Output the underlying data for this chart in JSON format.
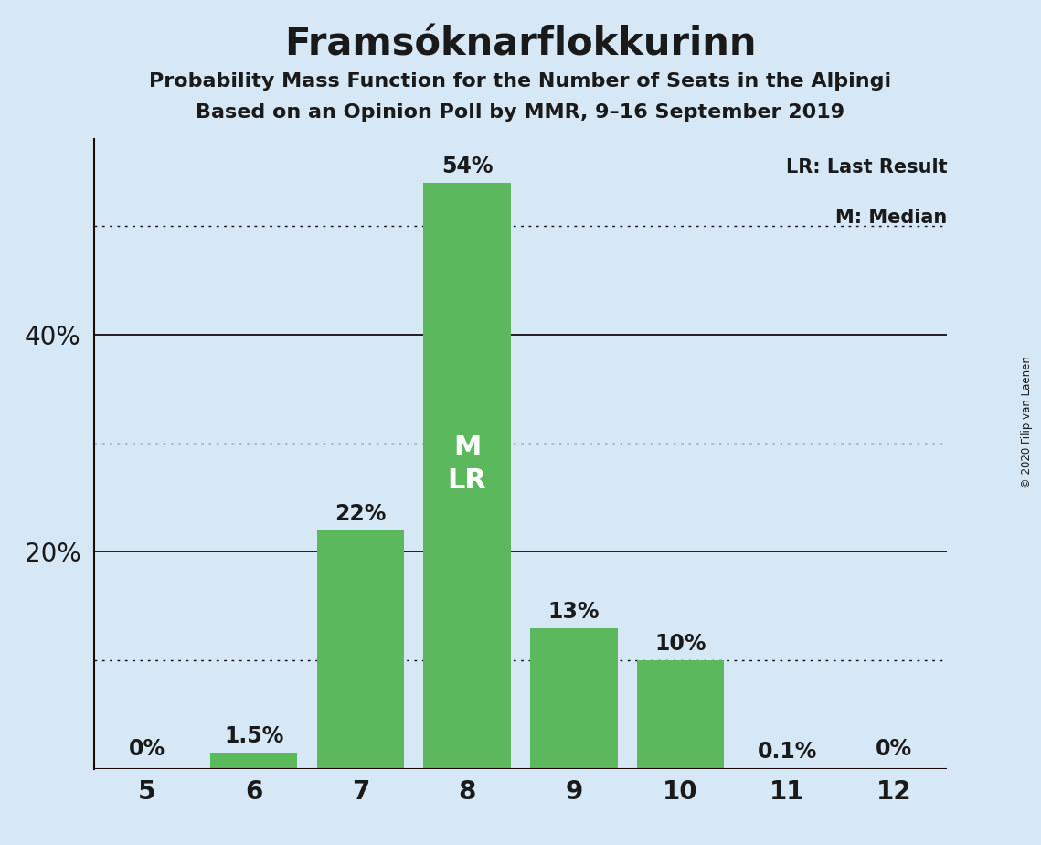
{
  "title": "Framsóknarflokkurinn",
  "subtitle1": "Probability Mass Function for the Number of Seats in the Alþingi",
  "subtitle2": "Based on an Opinion Poll by MMR, 9–16 September 2019",
  "copyright": "© 2020 Filip van Laenen",
  "categories": [
    5,
    6,
    7,
    8,
    9,
    10,
    11,
    12
  ],
  "values": [
    0.0,
    1.5,
    22.0,
    54.0,
    13.0,
    10.0,
    0.1,
    0.0
  ],
  "bar_color": "#5cb85c",
  "background_color": "#d6e8f5",
  "ylabel_ticks": [
    20,
    40
  ],
  "dotted_lines": [
    10,
    30,
    50
  ],
  "solid_lines": [
    20,
    40
  ],
  "ylim": [
    0,
    58
  ],
  "median_seat": 8,
  "last_result_seat": 8,
  "legend_lr": "LR: Last Result",
  "legend_m": "M: Median",
  "bar_label_color_dark": "#1a1a1a",
  "bar_label_color_white": "#ffffff",
  "title_fontsize": 30,
  "subtitle_fontsize": 16,
  "tick_fontsize": 20,
  "label_fontsize": 17,
  "legend_fontsize": 15,
  "ml_fontsize": 22
}
